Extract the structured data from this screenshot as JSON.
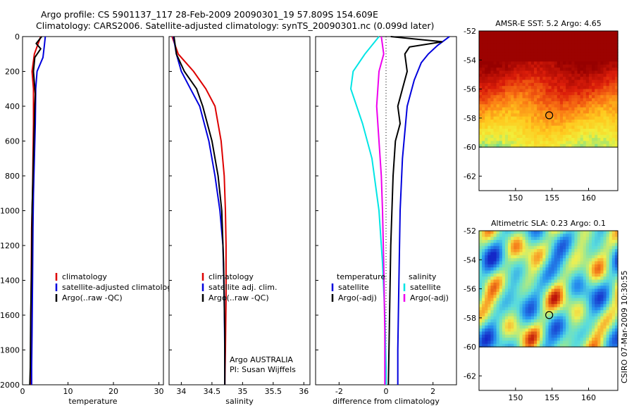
{
  "header": {
    "line1": "Argo profile: CS 5901137_117 28-Feb-2009 20090301_19 57.809S 154.609E",
    "line2": "Climatology: CARS2006. Satellite-adjusted climatology: synTS_20090301.nc (0.099d later)"
  },
  "side_text": "CSIRO 07-Mar-2009 10:30:55",
  "colors": {
    "climatology": "#dd0000",
    "satellite": "#0000dd",
    "argo": "#000000",
    "diff_temp_sat": "#00e5e5",
    "diff_sal_sat": "#00e5e5",
    "diff_sal_argo": "#ee00ee"
  },
  "chart_data": [
    {
      "type": "line",
      "panel": "temperature",
      "xlabel": "temperature",
      "ylabel": "",
      "xlim": [
        0,
        31
      ],
      "ylim": [
        2000,
        0
      ],
      "xticks": [
        0,
        10,
        20,
        30
      ],
      "yticks": [
        0,
        200,
        400,
        600,
        800,
        1000,
        1200,
        1400,
        1600,
        1800,
        2000
      ],
      "legend": [
        "climatology",
        "satellite-adjusted climatolog",
        "Argo(..raw -QC)"
      ],
      "series": [
        {
          "name": "climatology",
          "color": "#dd0000",
          "x": [
            4.0,
            2.6,
            2.1,
            2.4,
            2.4,
            2.3,
            2.2,
            2.0,
            1.9,
            1.8,
            1.8,
            1.7
          ],
          "y": [
            0,
            100,
            200,
            300,
            500,
            700,
            900,
            1100,
            1400,
            1700,
            1900,
            2000
          ]
        },
        {
          "name": "satellite-adjusted climatolog",
          "color": "#0000dd",
          "x": [
            5.0,
            4.8,
            4.5,
            3.2,
            2.9,
            2.8,
            2.6,
            2.4,
            2.3,
            2.2,
            2.1,
            2.0,
            2.0
          ],
          "y": [
            0,
            50,
            120,
            200,
            300,
            500,
            700,
            900,
            1100,
            1400,
            1700,
            1900,
            2000
          ]
        },
        {
          "name": "Argo(..raw -QC)",
          "color": "#000000",
          "x": [
            4.2,
            3.0,
            4.0,
            2.7,
            2.4,
            2.8,
            2.7,
            2.5,
            2.3,
            2.1,
            2.0,
            1.8,
            1.7,
            1.6
          ],
          "y": [
            0,
            40,
            70,
            120,
            200,
            330,
            400,
            600,
            800,
            1000,
            1300,
            1600,
            1900,
            2000
          ]
        }
      ]
    },
    {
      "type": "line",
      "panel": "salinity",
      "xlabel": "salinity",
      "ylabel": "",
      "xlim": [
        33.8,
        36.1
      ],
      "ylim": [
        2000,
        0
      ],
      "xticks": [
        34,
        34.5,
        35,
        35.5,
        36
      ],
      "legend": [
        "climatology",
        "satellite adj. clim.",
        "Argo(..raw -QC)"
      ],
      "annotation": [
        "Argo AUSTRALIA",
        "PI: Susan Wijffels"
      ],
      "series": [
        {
          "name": "climatology",
          "color": "#dd0000",
          "x": [
            33.85,
            33.95,
            34.2,
            34.4,
            34.55,
            34.65,
            34.7,
            34.72,
            34.73,
            34.73,
            34.72,
            34.71
          ],
          "y": [
            0,
            100,
            200,
            300,
            400,
            600,
            800,
            1000,
            1200,
            1500,
            1800,
            2000
          ]
        },
        {
          "name": "satellite adj. clim.",
          "color": "#0000dd",
          "x": [
            33.87,
            33.92,
            34.0,
            34.15,
            34.3,
            34.45,
            34.55,
            34.63,
            34.68,
            34.7,
            34.71,
            34.71
          ],
          "y": [
            0,
            100,
            200,
            300,
            400,
            600,
            800,
            1000,
            1200,
            1500,
            1800,
            2000
          ]
        },
        {
          "name": "Argo(..raw -QC)",
          "color": "#000000",
          "x": [
            33.88,
            33.92,
            34.05,
            34.25,
            34.35,
            34.5,
            34.6,
            34.66,
            34.69,
            34.71,
            34.71
          ],
          "y": [
            0,
            100,
            200,
            300,
            400,
            600,
            800,
            1000,
            1300,
            1700,
            2000
          ]
        }
      ]
    },
    {
      "type": "line",
      "panel": "difference",
      "xlabel": "difference from climatology",
      "ylabel": "",
      "xlim": [
        -3,
        3
      ],
      "ylim": [
        2000,
        0
      ],
      "xticks": [
        -2,
        0,
        2
      ],
      "legend_temperature": {
        "title": "temperature",
        "items": [
          "satellite",
          "Argo(-adj)"
        ]
      },
      "legend_salinity": {
        "title": "salinity",
        "items": [
          "satellite",
          "Argo(-adj)"
        ]
      },
      "series": [
        {
          "name": "temperature satellite",
          "color": "#0000dd",
          "x": [
            2.7,
            2.2,
            1.8,
            1.5,
            1.2,
            0.9,
            0.7,
            0.6,
            0.55,
            0.5,
            0.5
          ],
          "y": [
            0,
            50,
            100,
            150,
            250,
            400,
            700,
            1000,
            1400,
            1800,
            2000
          ]
        },
        {
          "name": "temperature Argo(-adj)",
          "color": "#000000",
          "x": [
            0.2,
            2.4,
            1.0,
            0.8,
            0.9,
            0.7,
            0.5,
            0.6,
            0.4,
            0.3,
            0.2,
            0.15,
            0.1
          ],
          "y": [
            0,
            30,
            60,
            100,
            200,
            300,
            400,
            500,
            600,
            800,
            1200,
            1600,
            2000
          ]
        },
        {
          "name": "salinity satellite",
          "color": "#00e5e5",
          "x": [
            -0.3,
            -0.9,
            -1.4,
            -1.5,
            -1.0,
            -0.6,
            -0.3,
            -0.15,
            -0.05,
            0.0,
            0.0
          ],
          "y": [
            0,
            100,
            200,
            300,
            500,
            700,
            1000,
            1300,
            1600,
            1900,
            2000
          ]
        },
        {
          "name": "salinity Argo(-adj)",
          "color": "#ee00ee",
          "x": [
            -0.2,
            -0.1,
            -0.3,
            -0.4,
            -0.3,
            -0.2,
            -0.15,
            -0.1,
            -0.05,
            -0.05
          ],
          "y": [
            0,
            100,
            200,
            400,
            600,
            800,
            1000,
            1300,
            1700,
            2000
          ]
        }
      ]
    },
    {
      "type": "heatmap",
      "panel": "sst_map",
      "title": "AMSR-E SST: 5.2 Argo: 4.65",
      "xlim": [
        145,
        164
      ],
      "ylim": [
        -63,
        -52
      ],
      "xticks": [
        150,
        155,
        160
      ],
      "yticks": [
        -52,
        -54,
        -56,
        -58,
        -60,
        -62
      ],
      "marker": {
        "lon": 154.609,
        "lat": -57.809
      }
    },
    {
      "type": "heatmap",
      "panel": "sla_map",
      "title": "Altimetric SLA: 0.23 Argo: 0.1",
      "xlim": [
        145,
        164
      ],
      "ylim": [
        -63,
        -52
      ],
      "xticks": [
        150,
        155,
        160
      ],
      "yticks": [
        -52,
        -54,
        -56,
        -58,
        -60,
        -62
      ],
      "marker": {
        "lon": 154.609,
        "lat": -57.809
      }
    }
  ]
}
